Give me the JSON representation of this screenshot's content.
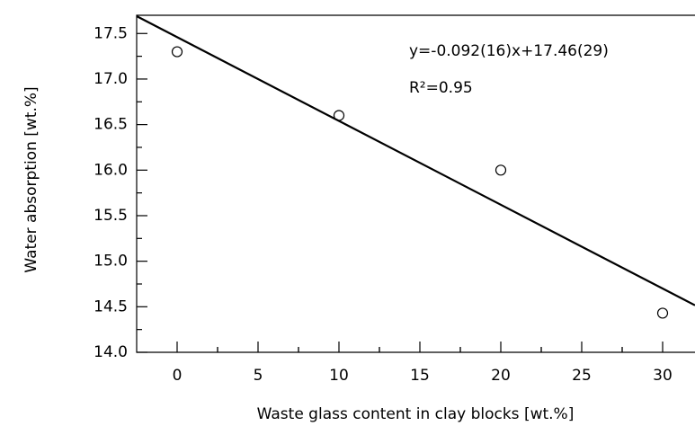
{
  "chart_data": {
    "type": "scatter",
    "x_label": "Waste glass content in clay blocks [wt.%]",
    "y_label": "Water absorption [wt.%]",
    "annotations": [
      "y=-0.092(16)x+17.46(29)",
      "R²=0.95"
    ],
    "series": [
      {
        "x": [
          0,
          10,
          20,
          30
        ],
        "values": [
          17.3,
          16.6,
          16.0,
          14.43
        ],
        "color": "#000000"
      }
    ],
    "fit": {
      "slope": -0.092,
      "intercept": 17.46,
      "color": "#000000"
    },
    "xlim": [
      -2.5,
      32
    ],
    "ylim": [
      14.0,
      17.7
    ],
    "xticks": [
      0,
      5,
      10,
      15,
      20,
      25,
      30
    ],
    "yticks": [
      {
        "value": 14.0,
        "label": "14.0"
      },
      {
        "value": 14.5,
        "label": "14.5"
      },
      {
        "value": 15.0,
        "label": "15.0"
      },
      {
        "value": 15.5,
        "label": "15.5"
      },
      {
        "value": 16.0,
        "label": "16.0"
      },
      {
        "value": 16.5,
        "label": "16.5"
      },
      {
        "value": 17.0,
        "label": "17.0"
      },
      {
        "value": 17.5,
        "label": "17.5"
      }
    ]
  }
}
